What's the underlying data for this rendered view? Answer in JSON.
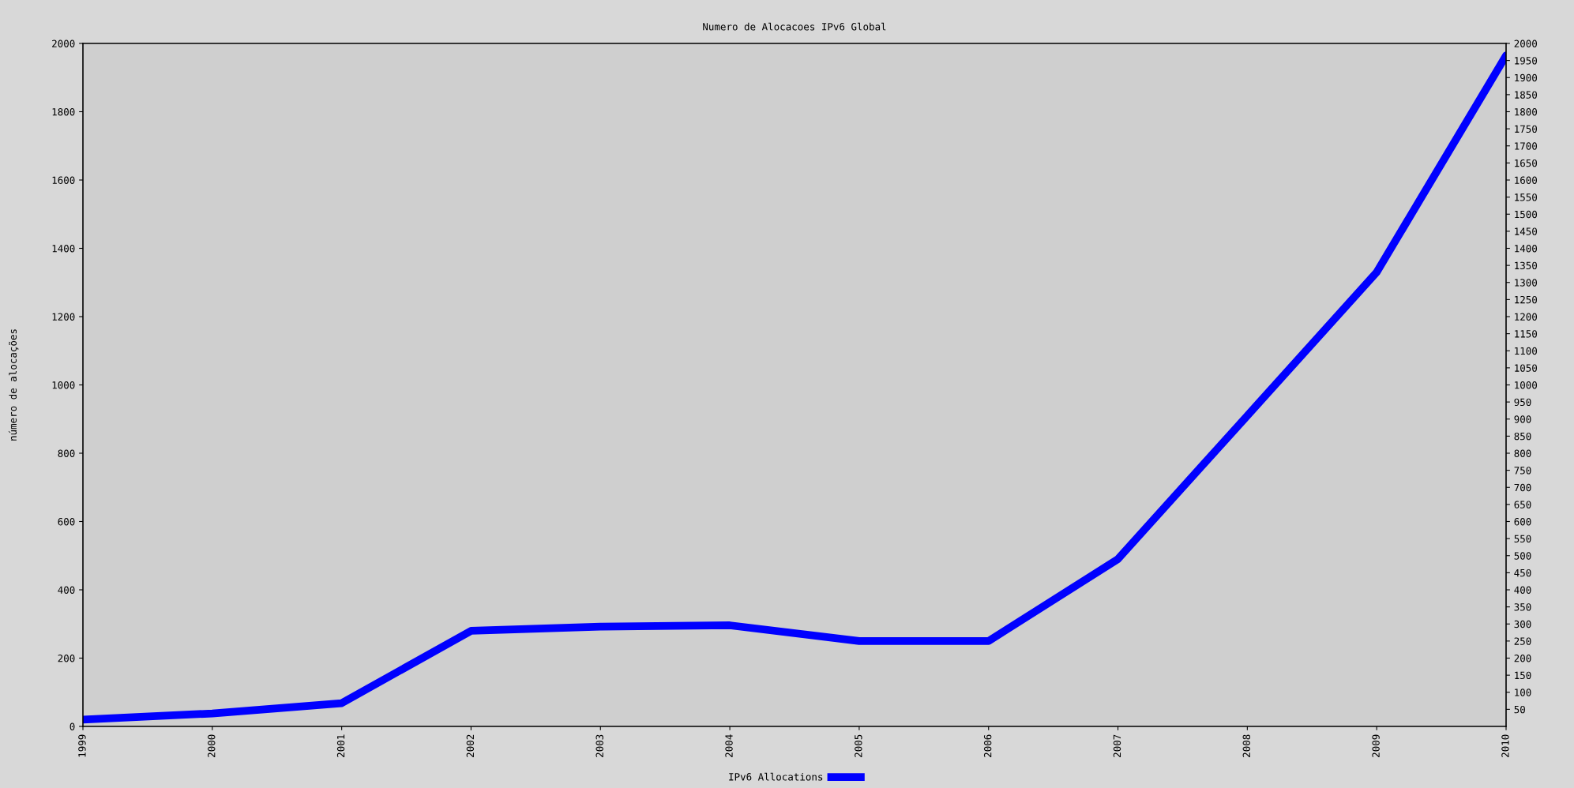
{
  "chart_data": {
    "type": "line",
    "title": "Numero de Alocacoes IPv6 Global",
    "ylabel": "número de alocações",
    "x": [
      1999,
      2000,
      2001,
      2002,
      2003,
      2004,
      2005,
      2006,
      2007,
      2008,
      2009,
      2010
    ],
    "series": [
      {
        "name": "IPv6 Allocations",
        "color": "#0000ff",
        "values": [
          20,
          38,
          68,
          280,
          292,
          296,
          250,
          250,
          490,
          910,
          1330,
          1965
        ]
      }
    ],
    "xlim": [
      1999,
      2010
    ],
    "xticks": [
      1999,
      2000,
      2001,
      2002,
      2003,
      2004,
      2005,
      2006,
      2007,
      2008,
      2009,
      2010
    ],
    "ylim": [
      0,
      2000
    ],
    "yticks": [
      0,
      200,
      400,
      600,
      800,
      1000,
      1200,
      1400,
      1600,
      1800,
      2000
    ],
    "y2lim": [
      0,
      2000
    ],
    "y2ticks": [
      50,
      100,
      150,
      200,
      250,
      300,
      350,
      400,
      450,
      500,
      550,
      600,
      650,
      700,
      750,
      800,
      850,
      900,
      950,
      1000,
      1050,
      1100,
      1150,
      1200,
      1250,
      1300,
      1350,
      1400,
      1450,
      1500,
      1550,
      1600,
      1650,
      1700,
      1750,
      1800,
      1850,
      1900,
      1950,
      2000
    ],
    "grid": false,
    "legend": "bottom",
    "marker": "none",
    "line_style": "solid"
  }
}
